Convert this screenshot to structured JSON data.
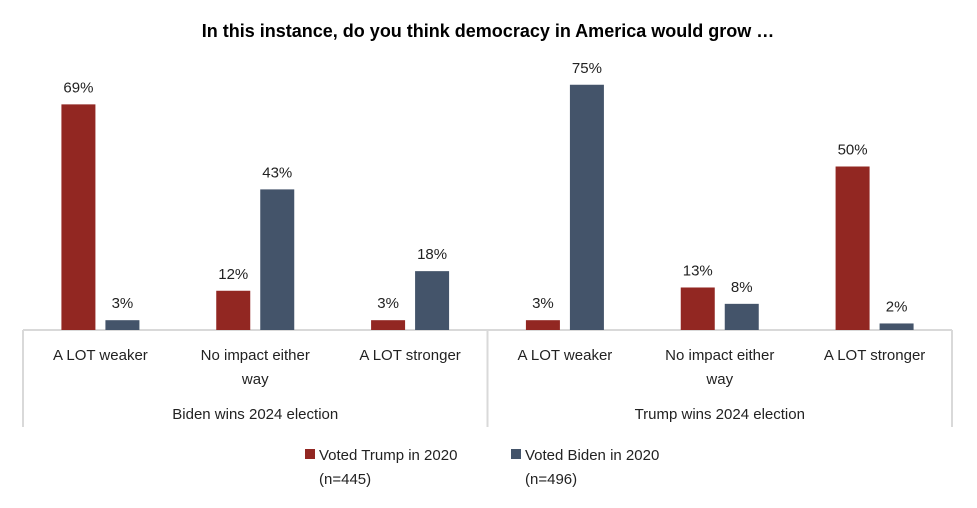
{
  "chart_data": {
    "type": "bar",
    "title": "In this instance, do you think democracy in America would grow …",
    "xlabel": "",
    "ylabel": "",
    "ylim": [
      0,
      80
    ],
    "grid": false,
    "legend_position": "bottom",
    "groups": [
      {
        "label": "Biden wins 2024 election",
        "categories": [
          {
            "label_lines": [
              "A LOT weaker"
            ],
            "values": [
              69,
              3
            ]
          },
          {
            "label_lines": [
              "No impact either",
              "way"
            ],
            "values": [
              12,
              43
            ]
          },
          {
            "label_lines": [
              "A LOT stronger"
            ],
            "values": [
              3,
              18
            ]
          }
        ]
      },
      {
        "label": "Trump wins 2024 election",
        "categories": [
          {
            "label_lines": [
              "A LOT weaker"
            ],
            "values": [
              3,
              75
            ]
          },
          {
            "label_lines": [
              "No impact either",
              "way"
            ],
            "values": [
              13,
              8
            ]
          },
          {
            "label_lines": [
              "A LOT stronger"
            ],
            "values": [
              50,
              2
            ]
          }
        ]
      }
    ],
    "series": [
      {
        "name": "Voted Trump in 2020",
        "name_lines": [
          "Voted Trump in 2020",
          "(n=445)"
        ],
        "color": "#922722"
      },
      {
        "name": "Voted Biden in 2020",
        "name_lines": [
          "Voted Biden in 2020",
          "(n=496)"
        ],
        "color": "#44546A"
      }
    ],
    "value_suffix": "%",
    "axis_color": "#D9D9D9"
  }
}
